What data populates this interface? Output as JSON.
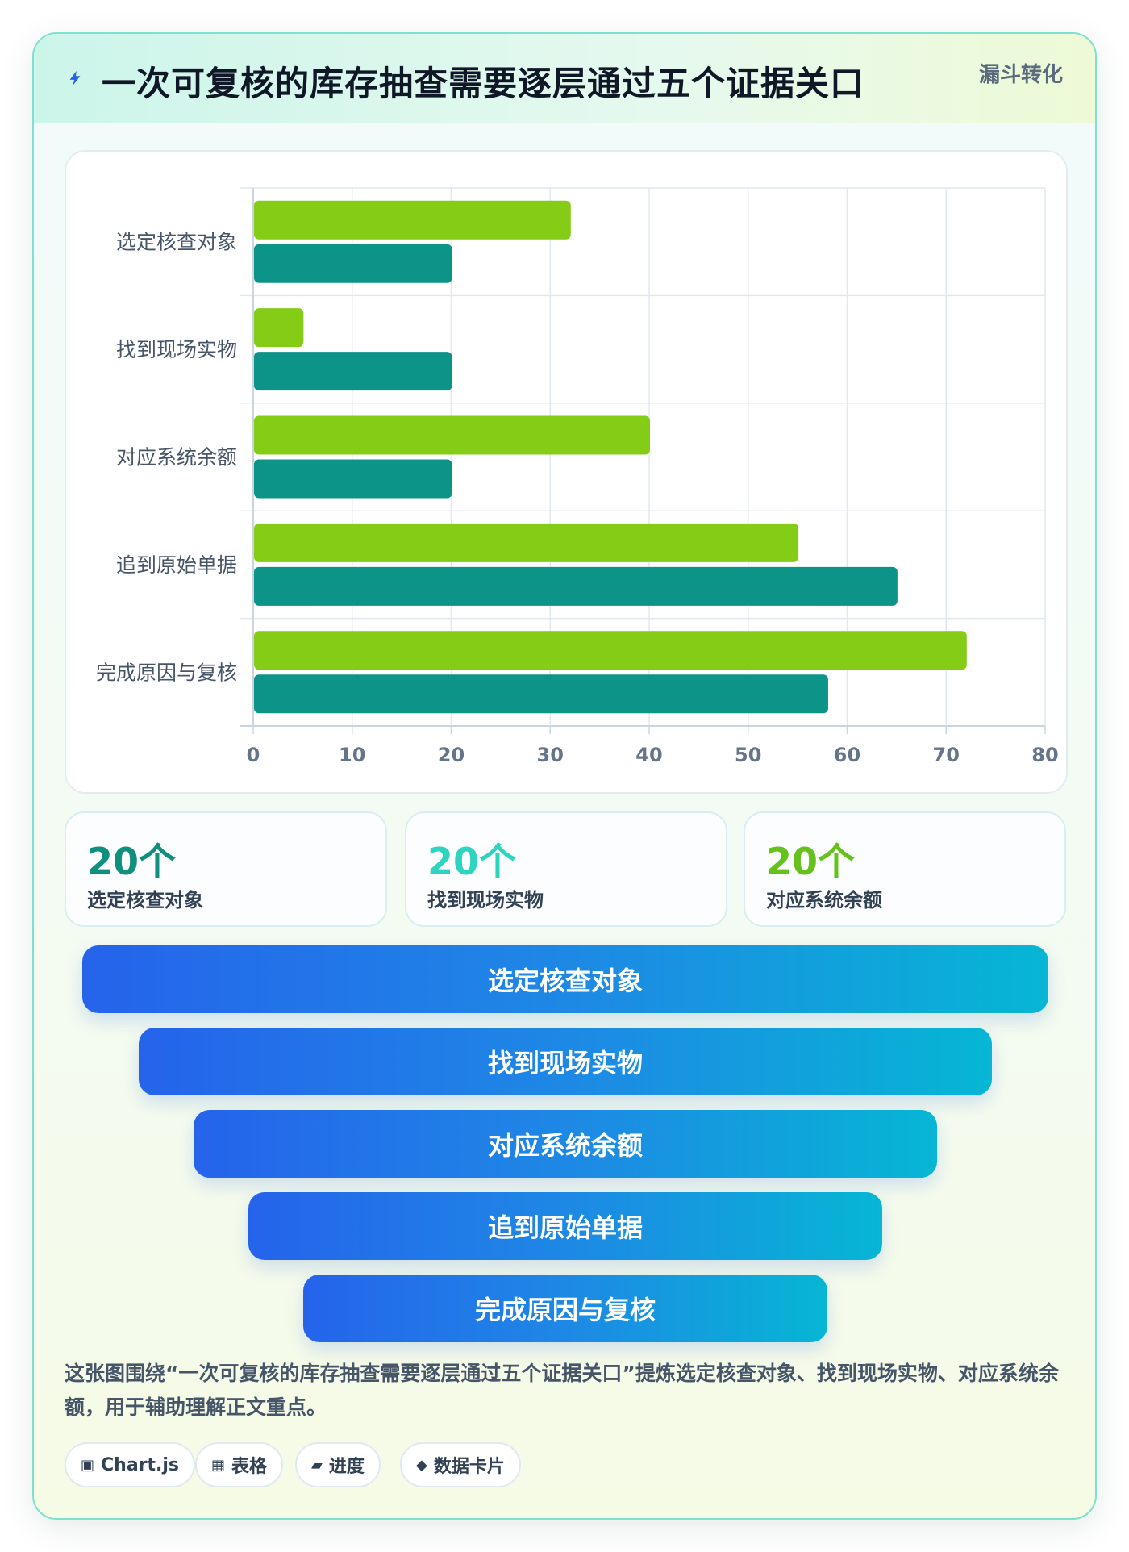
{
  "header": {
    "title": "一次可复核的库存抽查需要逐层通过五个证据关口",
    "tag": "漏斗转化"
  },
  "chart_data": {
    "type": "bar",
    "orientation": "horizontal",
    "categories": [
      "选定核查对象",
      "找到现场实物",
      "对应系统余额",
      "追到原始单据",
      "完成原因与复核"
    ],
    "series": [
      {
        "values": [
          32,
          5,
          40,
          55,
          72
        ],
        "color": "#84cc16"
      },
      {
        "values": [
          20,
          20,
          20,
          65,
          58
        ],
        "color": "#0d9488"
      }
    ],
    "xlim": [
      0,
      80
    ],
    "xticks": [
      "0",
      "10",
      "20",
      "30",
      "40",
      "50",
      "60",
      "70",
      "80"
    ],
    "grid": true,
    "legend": "none"
  },
  "stats": [
    {
      "value": "20个",
      "label": "选定核查对象",
      "color": "#0f8f7e"
    },
    {
      "value": "20个",
      "label": "找到现场实物",
      "color": "#2dd4bf"
    },
    {
      "value": "20个",
      "label": "对应系统余额",
      "color": "#65c21a"
    }
  ],
  "funnel": {
    "stages": [
      "选定核查对象",
      "找到现场实物",
      "对应系统余额",
      "追到原始单据",
      "完成原因与复核"
    ]
  },
  "description": "这张图围绕“一次可复核的库存抽查需要逐层通过五个证据关口”提炼选定核查对象、找到现场实物、对应系统余额，用于辅助理解正文重点。",
  "chips": [
    {
      "icon": "▣",
      "label": "Chart.js"
    },
    {
      "icon": "▦",
      "label": "表格"
    },
    {
      "icon": "▰",
      "label": "进度"
    },
    {
      "icon": "◆",
      "label": "数据卡片"
    }
  ]
}
